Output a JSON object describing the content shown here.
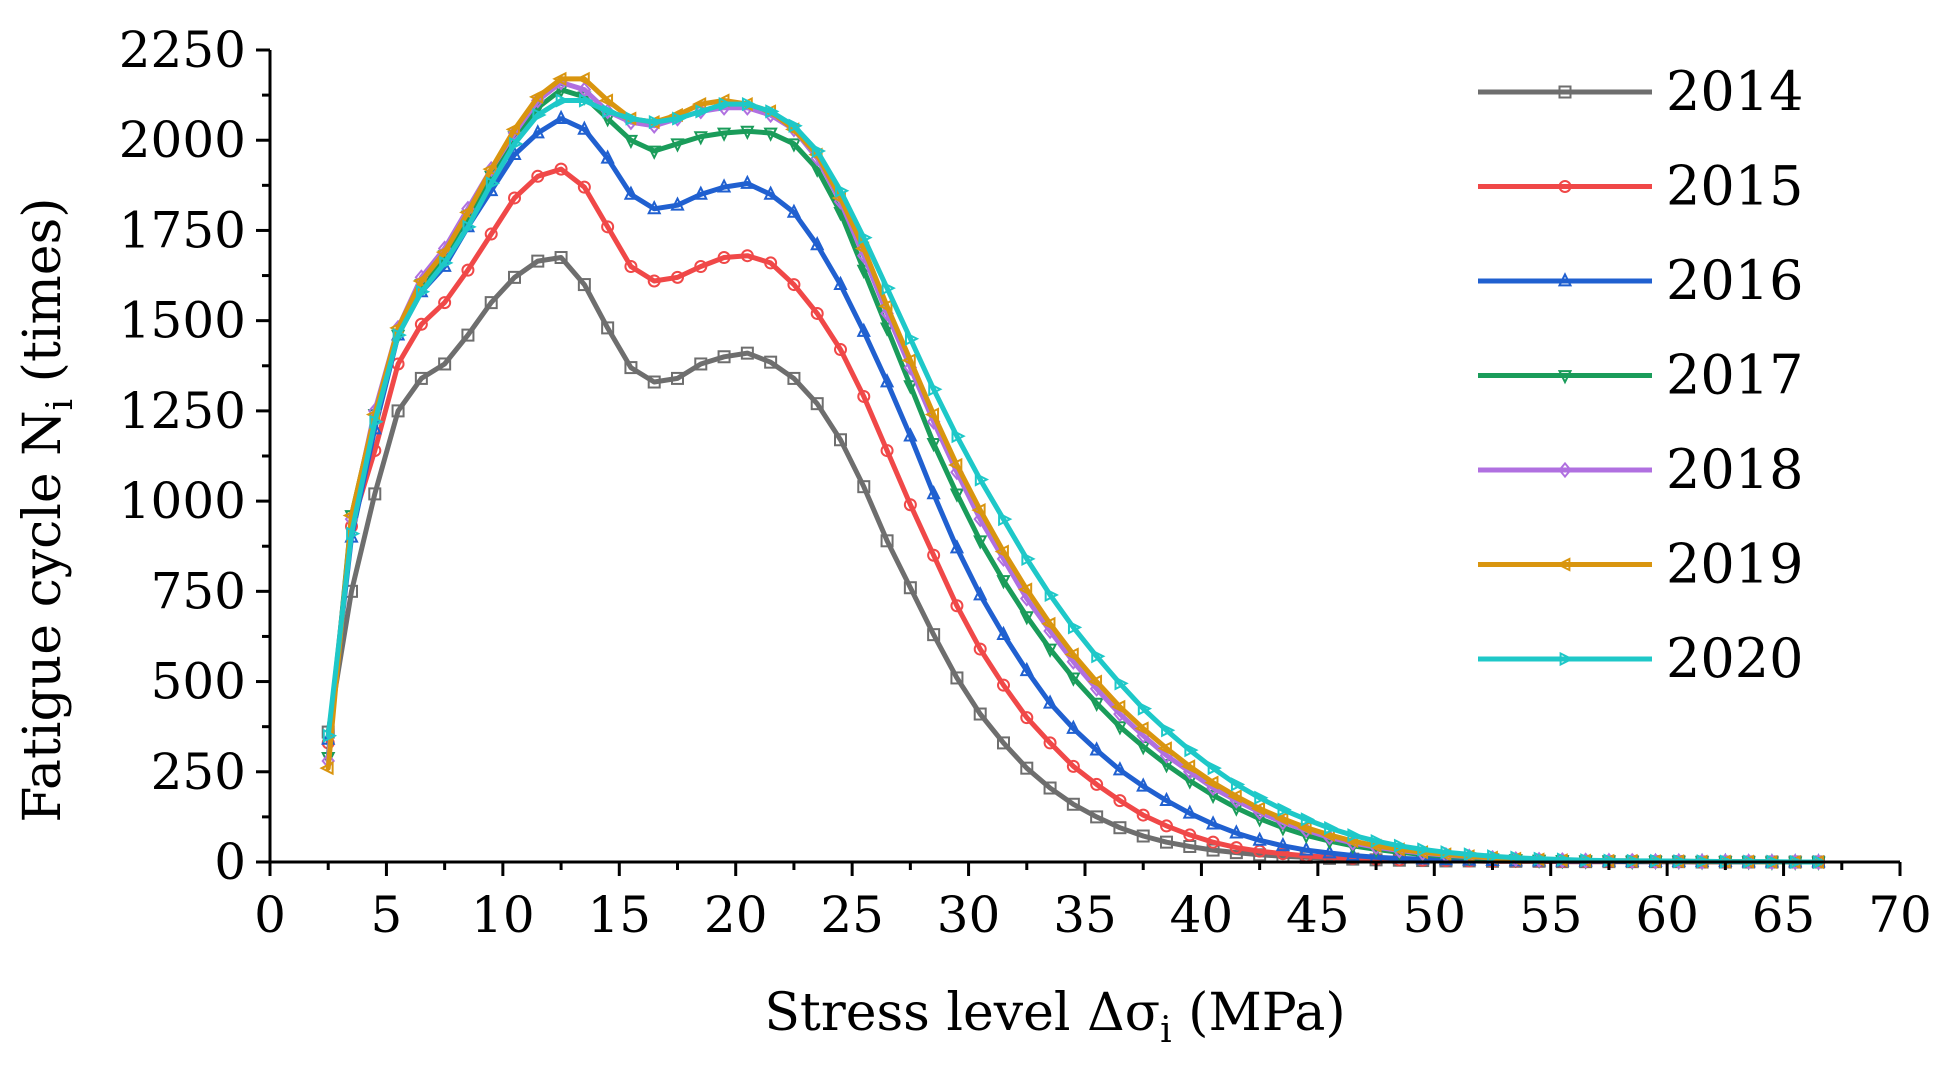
{
  "chart_data": {
    "type": "line",
    "title": "",
    "xlabel": "Stress level Δσ",
    "xlabel_sub": "i",
    "xlabel_unit": " (MPa)",
    "ylabel": "Fatigue cycle N",
    "ylabel_sub": "i",
    "ylabel_unit": " (times)",
    "xlim": [
      0,
      70
    ],
    "ylim": [
      0,
      2250
    ],
    "xticks": [
      "0",
      "5",
      "10",
      "15",
      "20",
      "25",
      "30",
      "35",
      "40",
      "45",
      "50",
      "55",
      "60",
      "65",
      "70"
    ],
    "yticks": [
      "0",
      "250",
      "500",
      "750",
      "1000",
      "1250",
      "1500",
      "1750",
      "2000",
      "2250"
    ],
    "grid": false,
    "legend_position": "top-right",
    "x": [
      2.5,
      3.5,
      4.5,
      5.5,
      6.5,
      7.5,
      8.5,
      9.5,
      10.5,
      11.5,
      12.5,
      13.5,
      14.5,
      15.5,
      16.5,
      17.5,
      18.5,
      19.5,
      20.5,
      21.5,
      22.5,
      23.5,
      24.5,
      25.5,
      26.5,
      27.5,
      28.5,
      29.5,
      30.5,
      31.5,
      32.5,
      33.5,
      34.5,
      35.5,
      36.5,
      37.5,
      38.5,
      39.5,
      40.5,
      41.5,
      42.5,
      43.5,
      44.5,
      45.5,
      46.5,
      47.5,
      48.5,
      49.5,
      50.5,
      51.5,
      52.5,
      53.5,
      54.5,
      55.5,
      56.5,
      57.5,
      58.5,
      59.5,
      60.5,
      61.5,
      62.5,
      63.5,
      64.5,
      65.5,
      66.5
    ],
    "series": [
      {
        "name": "2014",
        "color": "#6e6e6e",
        "marker": "square",
        "values": [
          360,
          750,
          1020,
          1250,
          1340,
          1380,
          1460,
          1550,
          1620,
          1665,
          1675,
          1600,
          1480,
          1370,
          1330,
          1340,
          1380,
          1400,
          1410,
          1385,
          1340,
          1270,
          1170,
          1040,
          890,
          760,
          630,
          510,
          410,
          330,
          260,
          205,
          160,
          125,
          95,
          72,
          55,
          43,
          33,
          26,
          20,
          16,
          13,
          10,
          8,
          6,
          5,
          4,
          3,
          3,
          2,
          2,
          2,
          1,
          1,
          1,
          1,
          1,
          1,
          0,
          0,
          0,
          0,
          0,
          0
        ]
      },
      {
        "name": "2015",
        "color": "#f04848",
        "marker": "circle",
        "values": [
          330,
          930,
          1140,
          1380,
          1490,
          1550,
          1640,
          1740,
          1840,
          1900,
          1920,
          1870,
          1760,
          1650,
          1610,
          1620,
          1650,
          1675,
          1680,
          1660,
          1600,
          1520,
          1420,
          1290,
          1140,
          990,
          850,
          710,
          590,
          490,
          400,
          330,
          265,
          215,
          170,
          130,
          100,
          75,
          55,
          40,
          30,
          23,
          17,
          13,
          10,
          8,
          6,
          5,
          4,
          3,
          2,
          2,
          2,
          1,
          1,
          1,
          1,
          1,
          1,
          0,
          0,
          0,
          0,
          0,
          0
        ]
      },
      {
        "name": "2016",
        "color": "#2060d0",
        "marker": "triangle-up",
        "values": [
          340,
          900,
          1200,
          1460,
          1580,
          1650,
          1760,
          1860,
          1960,
          2020,
          2060,
          2030,
          1950,
          1850,
          1810,
          1820,
          1850,
          1870,
          1880,
          1850,
          1800,
          1710,
          1600,
          1470,
          1330,
          1180,
          1020,
          870,
          740,
          630,
          530,
          440,
          370,
          310,
          255,
          210,
          170,
          135,
          105,
          80,
          60,
          45,
          33,
          25,
          18,
          13,
          10,
          8,
          6,
          5,
          4,
          3,
          3,
          2,
          2,
          2,
          1,
          1,
          1,
          1,
          1,
          0,
          0,
          0,
          0
        ]
      },
      {
        "name": "2017",
        "color": "#1a9c5a",
        "marker": "triangle-down",
        "values": [
          290,
          960,
          1240,
          1460,
          1600,
          1680,
          1790,
          1900,
          2010,
          2090,
          2140,
          2120,
          2060,
          2000,
          1970,
          1990,
          2010,
          2020,
          2025,
          2020,
          1990,
          1920,
          1800,
          1640,
          1480,
          1320,
          1160,
          1020,
          890,
          780,
          680,
          590,
          510,
          440,
          375,
          320,
          270,
          225,
          185,
          150,
          120,
          95,
          74,
          58,
          45,
          35,
          27,
          21,
          16,
          12,
          9,
          7,
          5,
          4,
          3,
          3,
          2,
          2,
          2,
          1,
          1,
          1,
          0,
          0,
          0
        ]
      },
      {
        "name": "2018",
        "color": "#b070e0",
        "marker": "diamond",
        "values": [
          280,
          950,
          1250,
          1480,
          1620,
          1700,
          1810,
          1920,
          2020,
          2110,
          2160,
          2140,
          2080,
          2050,
          2040,
          2060,
          2080,
          2090,
          2090,
          2070,
          2030,
          1950,
          1830,
          1680,
          1520,
          1370,
          1220,
          1080,
          950,
          840,
          730,
          640,
          555,
          480,
          410,
          350,
          295,
          250,
          205,
          170,
          138,
          110,
          88,
          68,
          53,
          41,
          32,
          25,
          19,
          15,
          11,
          8,
          6,
          5,
          4,
          3,
          3,
          2,
          2,
          1,
          1,
          1,
          0,
          0,
          0
        ]
      },
      {
        "name": "2019",
        "color": "#d9950f",
        "marker": "triangle-left",
        "values": [
          260,
          960,
          1240,
          1480,
          1610,
          1690,
          1800,
          1920,
          2030,
          2120,
          2170,
          2170,
          2110,
          2060,
          2050,
          2070,
          2100,
          2110,
          2100,
          2080,
          2030,
          1960,
          1840,
          1700,
          1540,
          1390,
          1240,
          1100,
          975,
          860,
          755,
          660,
          575,
          500,
          430,
          370,
          315,
          265,
          220,
          182,
          148,
          120,
          95,
          75,
          58,
          45,
          35,
          27,
          21,
          16,
          12,
          9,
          7,
          5,
          4,
          3,
          3,
          2,
          2,
          1,
          1,
          1,
          0,
          0,
          0
        ]
      },
      {
        "name": "2020",
        "color": "#1ec8c8",
        "marker": "triangle-right",
        "values": [
          350,
          910,
          1220,
          1460,
          1580,
          1660,
          1760,
          1880,
          1990,
          2070,
          2110,
          2110,
          2080,
          2060,
          2050,
          2060,
          2080,
          2100,
          2100,
          2080,
          2040,
          1970,
          1860,
          1730,
          1590,
          1450,
          1310,
          1180,
          1060,
          950,
          840,
          740,
          650,
          570,
          495,
          425,
          365,
          310,
          260,
          215,
          178,
          145,
          118,
          94,
          74,
          58,
          45,
          35,
          27,
          21,
          16,
          12,
          9,
          7,
          5,
          4,
          3,
          3,
          2,
          2,
          1,
          1,
          1,
          0,
          0
        ]
      }
    ]
  }
}
